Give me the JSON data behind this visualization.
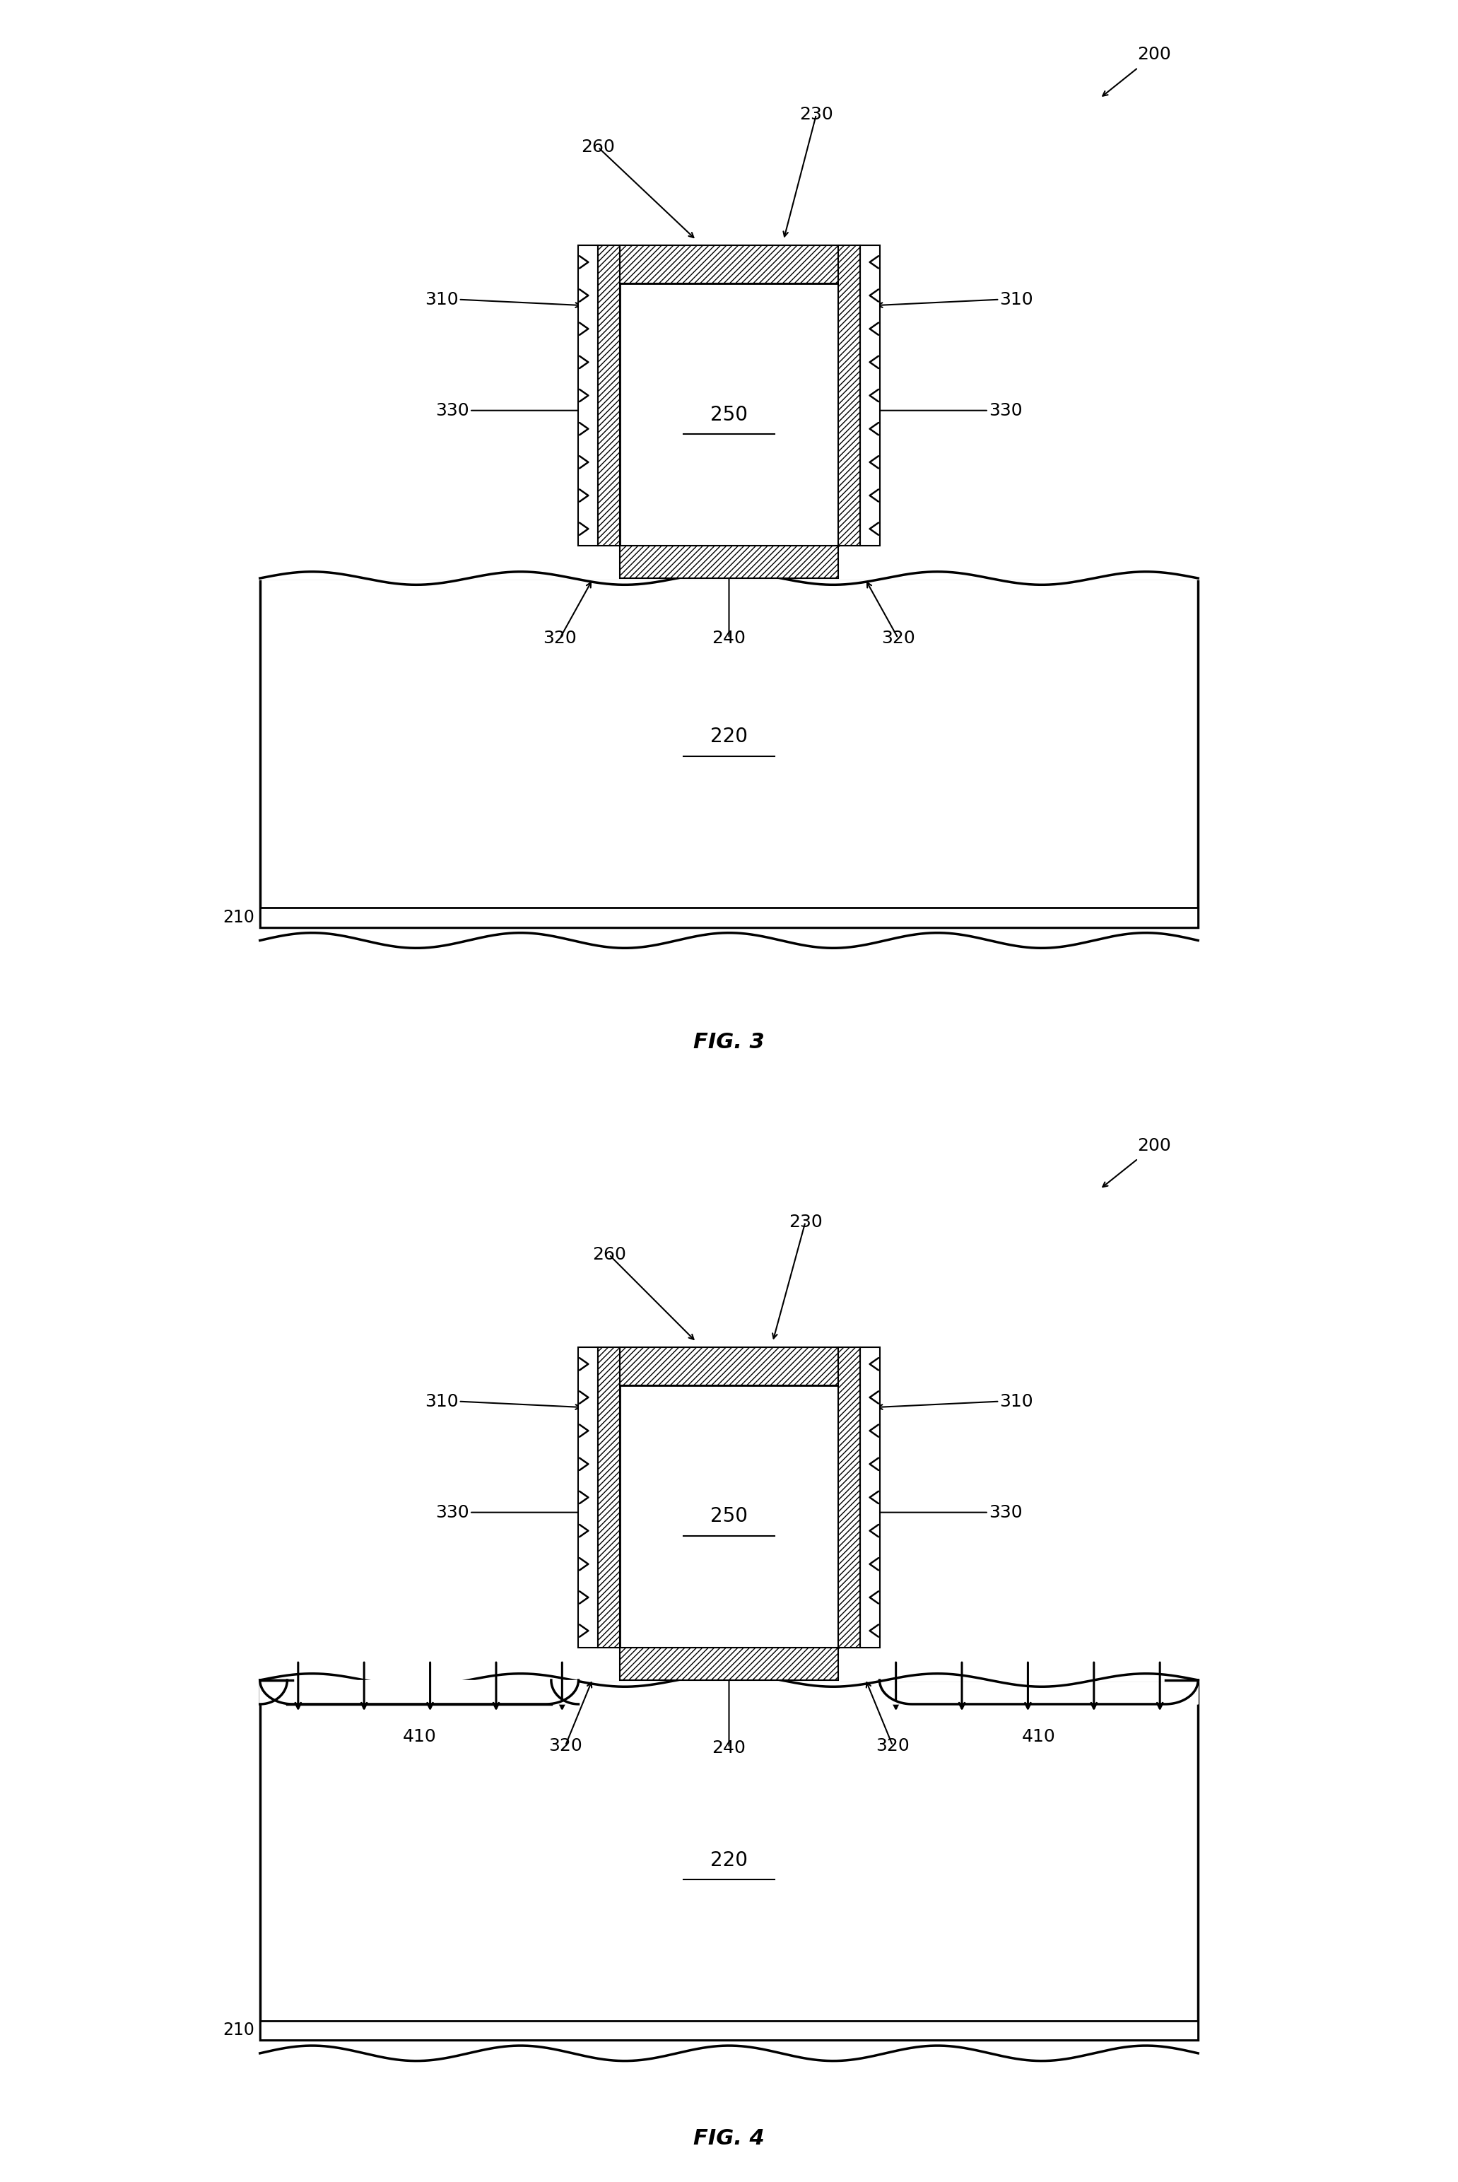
{
  "fig3_label": "FIG. 3",
  "fig4_label": "FIG. 4",
  "background_color": "#ffffff",
  "line_color": "#000000",
  "font_size_label": 18,
  "font_size_fig": 22,
  "font_size_inside": 20,
  "labels": {
    "200": "200",
    "210": "210",
    "220": "220",
    "230": "230",
    "240": "240",
    "250": "250",
    "260": "260",
    "310": "310",
    "320": "320",
    "330": "330",
    "410": "410"
  }
}
